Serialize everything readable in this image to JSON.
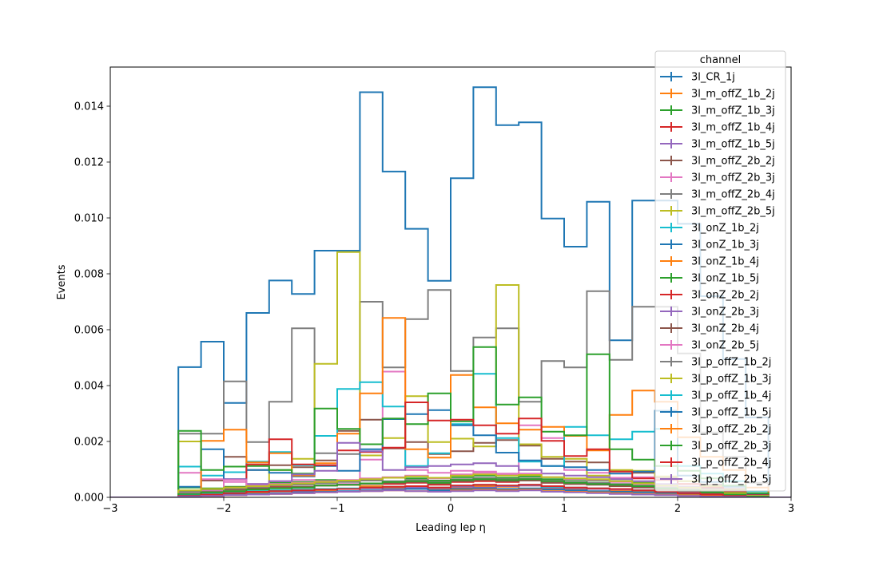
{
  "chart_data": {
    "type": "line",
    "title": "",
    "xlabel": "Leading lep η",
    "ylabel": "Events",
    "xlim": [
      -3,
      3
    ],
    "ylim": [
      0,
      0.0154
    ],
    "x_ticks": [
      "−3",
      "−2",
      "−1",
      "0",
      "1",
      "2",
      "3"
    ],
    "y_ticks": [
      "0.000",
      "0.002",
      "0.004",
      "0.006",
      "0.008",
      "0.010",
      "0.012",
      "0.014"
    ],
    "grid": false,
    "legend_title": "channel",
    "legend_position": "top-right",
    "bin_edges": [
      -3.0,
      -2.8,
      -2.6,
      -2.4,
      -2.2,
      -2.0,
      -1.8,
      -1.6,
      -1.4,
      -1.2,
      -1.0,
      -0.8,
      -0.6,
      -0.4,
      -0.2,
      0.0,
      0.2,
      0.4,
      0.6,
      0.8,
      1.0,
      1.2,
      1.4,
      1.6,
      1.8,
      2.0,
      2.2,
      2.4,
      2.6,
      2.8,
      3.0
    ],
    "series": [
      {
        "name": "3l_CR_1j",
        "color": "#1f77b4",
        "values": [
          0,
          0,
          0,
          0.00466,
          0.00557,
          0.00338,
          0.0066,
          0.00776,
          0.00728,
          0.00883,
          0.00883,
          0.0145,
          0.01166,
          0.00961,
          0.00775,
          0.01142,
          0.01468,
          0.01332,
          0.01342,
          0.00998,
          0.00897,
          0.01058,
          0.00562,
          0.01062,
          0.01062,
          0.00979,
          0.0072,
          0.00495,
          0.00286,
          0
        ]
      },
      {
        "name": "3l_m_offZ_1b_2j",
        "color": "#ff7f0e",
        "values": [
          0,
          0,
          0,
          5e-05,
          0.00012,
          8e-05,
          0.00015,
          0.00022,
          0.00018,
          0.00025,
          0.0003,
          0.0004,
          0.00035,
          0.0003,
          0.00028,
          0.00035,
          0.0004,
          0.00038,
          0.00042,
          0.0003,
          0.00028,
          0.00032,
          0.00025,
          0.0002,
          0.00015,
          0.0001,
          8e-05,
          5e-05,
          0,
          0
        ]
      },
      {
        "name": "3l_m_offZ_1b_3j",
        "color": "#2ca02c",
        "values": [
          0,
          0,
          0,
          0.00035,
          0.00032,
          0.00038,
          0.00045,
          0.00052,
          0.00055,
          0.00062,
          0.00058,
          0.00065,
          0.0007,
          0.00068,
          0.0006,
          0.00072,
          0.00078,
          0.0007,
          0.00075,
          0.00065,
          0.00062,
          0.0006,
          0.00058,
          0.00052,
          0.00045,
          0.00038,
          0.00032,
          0.00018,
          0.0001,
          0
        ]
      },
      {
        "name": "3l_m_offZ_1b_4j",
        "color": "#d62728",
        "values": [
          0,
          0,
          0,
          0.00015,
          0.00022,
          0.00028,
          0.00032,
          0.00038,
          0.00035,
          0.00042,
          0.00045,
          0.0005,
          0.00048,
          0.00052,
          0.00045,
          0.00055,
          0.00058,
          0.00055,
          0.0006,
          0.00052,
          0.00048,
          0.0005,
          0.00045,
          0.0004,
          0.00032,
          0.00028,
          0.0002,
          0.00012,
          5e-05,
          0
        ]
      },
      {
        "name": "3l_m_offZ_1b_5j",
        "color": "#9467bd",
        "values": [
          0,
          0,
          0,
          0.0001,
          0.00012,
          0.00018,
          0.0002,
          0.00025,
          0.00022,
          0.00028,
          0.0003,
          0.00032,
          0.0003,
          0.00035,
          0.00032,
          0.00038,
          0.00035,
          0.0004,
          0.00042,
          0.00035,
          0.00032,
          0.0003,
          0.00028,
          0.00025,
          0.0002,
          0.00018,
          0.00012,
          8e-05,
          0,
          0
        ]
      },
      {
        "name": "3l_m_offZ_2b_2j",
        "color": "#8c564b",
        "values": [
          0,
          0,
          0,
          0.00012,
          0.0006,
          0.00145,
          0.00098,
          0.00115,
          0.00108,
          0.00132,
          0.00238,
          0.00278,
          0.00175,
          0.00198,
          0.00155,
          0.00165,
          0.00195,
          0.00205,
          0.00185,
          0.00138,
          0.00128,
          0.00125,
          0.00095,
          0.00088,
          0.0007,
          0.00058,
          0.00045,
          0.0003,
          0.00012,
          0
        ]
      },
      {
        "name": "3l_m_offZ_2b_3j",
        "color": "#e377c2",
        "values": [
          0,
          0,
          0,
          0.00088,
          0.00065,
          0.00055,
          0.00048,
          0.00058,
          0.00062,
          0.00055,
          0.00048,
          0.00135,
          0.0045,
          0.00098,
          0.00088,
          0.00095,
          0.00092,
          0.00085,
          0.00258,
          0.00212,
          0.00098,
          0.00088,
          0.0007,
          0.00072,
          0.00045,
          0.00038,
          0.00025,
          0.00012,
          5e-05,
          0
        ]
      },
      {
        "name": "3l_m_offZ_2b_4j",
        "color": "#7f7f7f",
        "values": [
          0,
          0,
          0,
          0.00228,
          0.00228,
          0.00415,
          0.00198,
          0.00342,
          0.00605,
          0.00158,
          0.00155,
          0.007,
          0.00465,
          0.00638,
          0.00742,
          0.00452,
          0.00572,
          0.00605,
          0.00342,
          0.00488,
          0.00465,
          0.00738,
          0.00492,
          0.00682,
          0.00682,
          0.00515,
          0.00232,
          0.00145,
          0.00052,
          0
        ]
      },
      {
        "name": "3l_m_offZ_2b_5j",
        "color": "#bcbd22",
        "values": [
          0,
          0,
          0,
          0.002,
          0.00025,
          0.00018,
          0.00012,
          0.00098,
          0.00138,
          0.00478,
          0.00878,
          0.0015,
          0.00212,
          0.00362,
          0.00198,
          0.0021,
          0.00182,
          0.0076,
          0.0019,
          0.00145,
          0.00138,
          0.00078,
          0.00098,
          0.00095,
          0.00075,
          0.00058,
          0.0004,
          0.00025,
          0.0001,
          0
        ]
      },
      {
        "name": "3l_onZ_1b_2j",
        "color": "#17becf",
        "values": [
          0,
          0,
          0,
          0.0011,
          0.00078,
          0.0009,
          0.00128,
          0.00162,
          0.00115,
          0.0022,
          0.00388,
          0.00412,
          0.00325,
          0.00112,
          0.00158,
          0.00262,
          0.00442,
          0.00212,
          0.00128,
          0.00112,
          0.00252,
          0.00222,
          0.00208,
          0.00235,
          0.00245,
          0.00112,
          0.00085,
          0.00058,
          0.00022,
          0
        ]
      },
      {
        "name": "3l_onZ_1b_3j",
        "color": "#1f77b4",
        "values": [
          0,
          0,
          0,
          0.00038,
          0.00172,
          0.00065,
          0.00098,
          0.00088,
          0.00075,
          0.00112,
          0.00095,
          0.00172,
          0.0028,
          0.00298,
          0.00312,
          0.00258,
          0.00222,
          0.0016,
          0.00132,
          0.00112,
          0.00108,
          0.00098,
          0.00085,
          0.00092,
          0.0031,
          0.00078,
          0.00055,
          0.00038,
          0.00012,
          0
        ]
      },
      {
        "name": "3l_onZ_1b_4j",
        "color": "#ff7f0e",
        "values": [
          0,
          0,
          0,
          0.00022,
          0.00202,
          0.00242,
          0.00125,
          0.00158,
          0.00078,
          0.00122,
          0.00228,
          0.00372,
          0.00642,
          0.00172,
          0.00142,
          0.00438,
          0.00322,
          0.00265,
          0.00242,
          0.00252,
          0.0022,
          0.00168,
          0.00295,
          0.00382,
          0.00342,
          0.00215,
          0.00145,
          0.00098,
          0.00035,
          0
        ]
      },
      {
        "name": "3l_onZ_1b_5j",
        "color": "#2ca02c",
        "values": [
          0,
          0,
          0,
          0.00238,
          0.00098,
          0.0011,
          0.00112,
          0.00098,
          0.00085,
          0.00318,
          0.00245,
          0.0019,
          0.00282,
          0.00262,
          0.00372,
          0.00272,
          0.00538,
          0.00332,
          0.00358,
          0.00235,
          0.00222,
          0.00512,
          0.00172,
          0.00135,
          0.00112,
          0.00095,
          0.00068,
          0.00042,
          0.00015,
          0
        ]
      },
      {
        "name": "3l_onZ_2b_2j",
        "color": "#d62728",
        "values": [
          0,
          0,
          0,
          0.00012,
          0.00028,
          0.00035,
          0.00118,
          0.00208,
          0.00118,
          0.00115,
          0.00168,
          0.00162,
          0.00178,
          0.0034,
          0.00275,
          0.00278,
          0.00258,
          0.00228,
          0.00282,
          0.00202,
          0.00148,
          0.00172,
          0.00092,
          0.00068,
          0.00062,
          0.00048,
          0.00035,
          0.00022,
          8e-05,
          0
        ]
      },
      {
        "name": "3l_onZ_2b_3j",
        "color": "#9467bd",
        "values": [
          0,
          0,
          0,
          8e-05,
          0.00018,
          0.00065,
          0.00048,
          0.00058,
          0.00082,
          0.00095,
          0.00195,
          0.00165,
          0.00098,
          0.00108,
          0.00112,
          0.00118,
          0.00122,
          0.00112,
          0.00098,
          0.00085,
          0.00078,
          0.00072,
          0.00065,
          0.00058,
          0.00048,
          0.00038,
          0.00028,
          0.00015,
          5e-05,
          0
        ]
      },
      {
        "name": "3l_onZ_2b_4j",
        "color": "#8c564b",
        "values": [
          0,
          0,
          0,
          0.00015,
          0.0002,
          0.00028,
          0.00032,
          0.00035,
          0.00038,
          0.00042,
          0.00045,
          0.00048,
          0.00052,
          0.00055,
          0.0005,
          0.00058,
          0.00062,
          0.00058,
          0.0006,
          0.00052,
          0.00048,
          0.00045,
          0.0004,
          0.00035,
          0.00028,
          0.00022,
          0.00015,
          8e-05,
          2e-05,
          0
        ]
      },
      {
        "name": "3l_onZ_2b_5j",
        "color": "#e377c2",
        "values": [
          0,
          0,
          0,
          0.00018,
          0.00025,
          0.00062,
          0.00042,
          0.00048,
          0.00052,
          0.00058,
          0.00062,
          0.00068,
          0.00072,
          0.00078,
          0.00068,
          0.00082,
          0.00088,
          0.00082,
          0.00085,
          0.00072,
          0.00065,
          0.00062,
          0.00055,
          0.00048,
          0.00038,
          0.0003,
          0.00022,
          0.00012,
          5e-05,
          0
        ]
      },
      {
        "name": "3l_p_offZ_1b_2j",
        "color": "#7f7f7f",
        "values": [
          0,
          0,
          0,
          0.0002,
          0.00028,
          0.00032,
          0.00038,
          0.00042,
          0.00045,
          0.0005,
          0.00055,
          0.0006,
          0.00058,
          0.00062,
          0.00055,
          0.00065,
          0.0007,
          0.00065,
          0.00068,
          0.0006,
          0.00055,
          0.00052,
          0.00048,
          0.00042,
          0.00035,
          0.00028,
          0.0002,
          0.00012,
          5e-05,
          0
        ]
      },
      {
        "name": "3l_p_offZ_1b_3j",
        "color": "#bcbd22",
        "values": [
          0,
          0,
          0,
          0.00025,
          0.0003,
          0.00035,
          0.0004,
          0.00045,
          0.0005,
          0.00055,
          0.0006,
          0.00065,
          0.0007,
          0.00075,
          0.0007,
          0.00078,
          0.00082,
          0.00078,
          0.0008,
          0.00072,
          0.00068,
          0.00065,
          0.00058,
          0.0005,
          0.00042,
          0.00035,
          0.00025,
          0.00015,
          5e-05,
          0
        ]
      },
      {
        "name": "3l_p_offZ_1b_4j",
        "color": "#17becf",
        "values": [
          0,
          0,
          0,
          0.0001,
          0.00015,
          0.0002,
          0.00022,
          0.00025,
          0.00028,
          0.0003,
          0.00032,
          0.00035,
          0.00038,
          0.0004,
          0.00035,
          0.00042,
          0.00045,
          0.00042,
          0.00045,
          0.00038,
          0.00035,
          0.00032,
          0.0003,
          0.00025,
          0.0002,
          0.00015,
          0.0001,
          5e-05,
          0,
          0
        ]
      },
      {
        "name": "3l_p_offZ_1b_5j",
        "color": "#1f77b4",
        "values": [
          0,
          0,
          0,
          5e-05,
          8e-05,
          0.0001,
          0.00012,
          0.00015,
          0.00018,
          0.0002,
          0.00022,
          0.00025,
          0.00028,
          0.0003,
          0.00025,
          0.0003,
          0.00032,
          0.0003,
          0.00032,
          0.00028,
          0.00025,
          0.00022,
          0.0002,
          0.00018,
          0.00015,
          0.0001,
          8e-05,
          5e-05,
          0,
          0
        ]
      },
      {
        "name": "3l_p_offZ_2b_2j",
        "color": "#ff7f0e",
        "values": [
          0,
          0,
          0,
          2e-05,
          5e-05,
          8e-05,
          0.0001,
          0.00012,
          0.00015,
          0.00018,
          0.0002,
          0.00022,
          0.00025,
          0.00022,
          0.0002,
          0.00025,
          0.00028,
          0.00025,
          0.00028,
          0.00022,
          0.0002,
          0.00018,
          0.00015,
          0.00012,
          0.0001,
          8e-05,
          5e-05,
          2e-05,
          0,
          0
        ]
      },
      {
        "name": "3l_p_offZ_2b_3j",
        "color": "#2ca02c",
        "values": [
          0,
          0,
          0,
          0.00012,
          0.00018,
          0.00022,
          0.00028,
          0.00032,
          0.00035,
          0.00042,
          0.00045,
          0.0005,
          0.00055,
          0.00058,
          0.00052,
          0.00062,
          0.00065,
          0.00062,
          0.00065,
          0.00058,
          0.00052,
          0.00048,
          0.00045,
          0.0004,
          0.00032,
          0.00025,
          0.00018,
          0.0001,
          3e-05,
          0
        ]
      },
      {
        "name": "3l_p_offZ_2b_4j",
        "color": "#d62728",
        "values": [
          0,
          0,
          0,
          5e-05,
          0.0001,
          0.00015,
          0.0002,
          0.00022,
          0.00025,
          0.00028,
          0.0003,
          0.00035,
          0.00038,
          0.0004,
          0.00035,
          0.00042,
          0.00045,
          0.00042,
          0.00045,
          0.0004,
          0.00035,
          0.00032,
          0.0003,
          0.00025,
          0.0002,
          0.00015,
          0.0001,
          5e-05,
          0,
          0
        ]
      },
      {
        "name": "3l_p_offZ_2b_5j",
        "color": "#9467bd",
        "values": [
          0,
          0,
          0,
          3e-05,
          5e-05,
          8e-05,
          0.0001,
          0.00012,
          0.00015,
          0.00018,
          0.0002,
          0.00022,
          0.00025,
          0.00022,
          0.0002,
          0.00022,
          0.00025,
          0.00022,
          0.00025,
          0.0002,
          0.00018,
          0.00015,
          0.00012,
          0.0001,
          8e-05,
          5e-05,
          3e-05,
          2e-05,
          0,
          0
        ]
      }
    ]
  }
}
